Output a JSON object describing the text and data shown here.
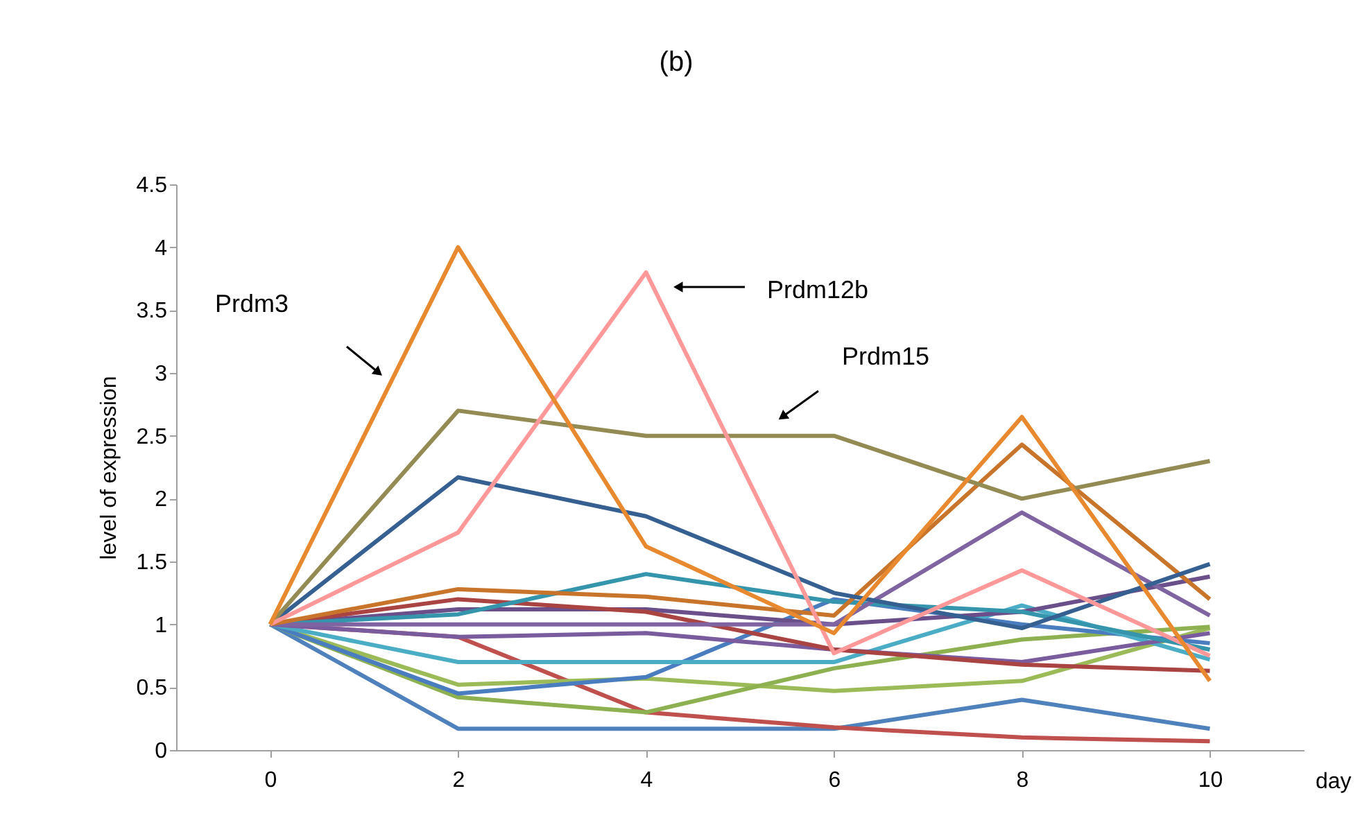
{
  "chart_data": {
    "type": "line",
    "title": "(b)",
    "xlabel": "day",
    "ylabel": "level of expression",
    "categories": [
      "0",
      "2",
      "4",
      "6",
      "8",
      "10"
    ],
    "ylim": [
      0,
      4.5
    ],
    "yticks": [
      0,
      0.5,
      1,
      1.5,
      2,
      2.5,
      3,
      3.5,
      4,
      4.5
    ],
    "grid": false,
    "legend": false,
    "marker": "none",
    "line_style": "solid",
    "annotations": [
      "Prdm3",
      "Prdm12b",
      "Prdm15"
    ],
    "series": [
      {
        "color": "#4f81bd",
        "values": [
          1,
          0.17,
          0.17,
          0.17,
          0.4,
          0.17
        ]
      },
      {
        "color": "#c0504d",
        "values": [
          1,
          0.9,
          0.3,
          0.18,
          0.1,
          0.07
        ]
      },
      {
        "color": "#9bbb59",
        "values": [
          1,
          0.52,
          0.57,
          0.47,
          0.55,
          0.97
        ]
      },
      {
        "color": "#8db150",
        "values": [
          1,
          0.42,
          0.3,
          0.65,
          0.88,
          0.98
        ]
      },
      {
        "color": "#4a7dc0",
        "values": [
          1,
          0.45,
          0.58,
          1.2,
          1.0,
          0.85
        ]
      },
      {
        "color": "#4bacc6",
        "values": [
          1,
          0.7,
          0.7,
          0.7,
          1.15,
          0.72
        ]
      },
      {
        "color": "#7a5c9e",
        "values": [
          1,
          0.9,
          0.93,
          0.8,
          0.7,
          0.93
        ]
      },
      {
        "color": "#6a4f8a",
        "values": [
          1,
          1.12,
          1.12,
          1.0,
          1.1,
          1.38
        ]
      },
      {
        "color": "#a94442",
        "values": [
          1,
          1.2,
          1.1,
          0.8,
          0.68,
          0.63
        ]
      },
      {
        "color": "#3595ad",
        "values": [
          1,
          1.08,
          1.4,
          1.18,
          1.1,
          0.8
        ]
      },
      {
        "color": "#8064a2",
        "values": [
          1,
          1.0,
          1.0,
          1.0,
          1.89,
          1.07
        ]
      },
      {
        "color": "#c8742a",
        "values": [
          1,
          1.28,
          1.22,
          1.07,
          2.43,
          1.2
        ]
      },
      {
        "color": "#376092",
        "values": [
          1,
          2.17,
          1.86,
          1.25,
          0.97,
          1.48
        ]
      },
      {
        "color": "#948a54",
        "values": [
          1,
          2.7,
          2.5,
          2.5,
          2.0,
          2.3
        ]
      },
      {
        "color": "#ff9999",
        "values": [
          1,
          1.73,
          3.8,
          0.77,
          1.43,
          0.75
        ]
      },
      {
        "color": "#e8892f",
        "values": [
          1,
          4.0,
          1.62,
          0.93,
          2.65,
          0.55
        ]
      }
    ]
  }
}
